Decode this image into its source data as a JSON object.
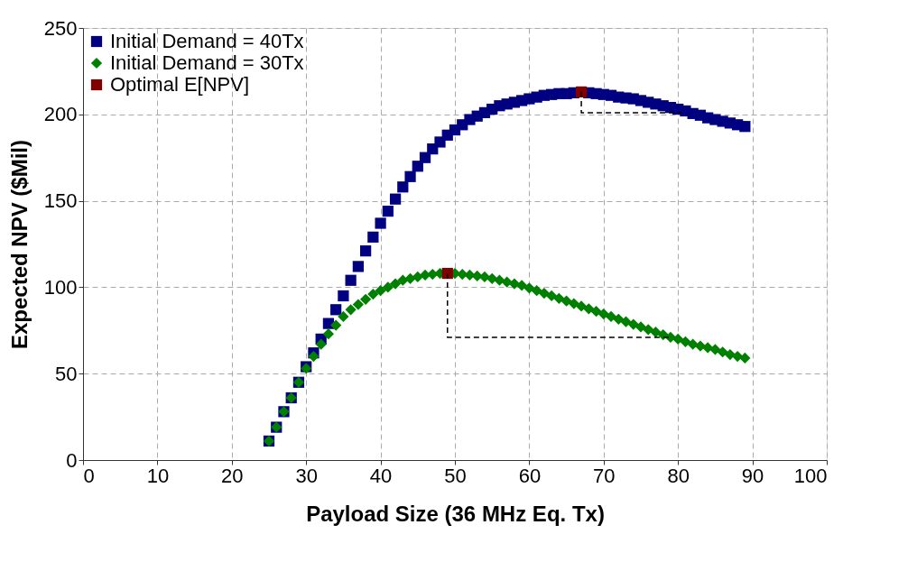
{
  "chart_data": {
    "type": "scatter",
    "xlabel": "Payload Size (36 MHz Eq. Tx)",
    "ylabel": "Expected NPV ($Mil)",
    "xlim": [
      0,
      100
    ],
    "xticks": [
      0,
      10,
      20,
      30,
      40,
      50,
      60,
      70,
      80,
      90,
      100
    ],
    "ylim": [
      0,
      250
    ],
    "yticks": [
      0,
      50,
      100,
      150,
      200,
      250
    ],
    "grid": true,
    "legend": "top left",
    "series": [
      {
        "name": "Initial Demand = 40Tx",
        "color": "#000080",
        "marker": "square",
        "x": [
          25,
          26,
          27,
          28,
          29,
          30,
          31,
          32,
          33,
          34,
          35,
          36,
          37,
          38,
          39,
          40,
          41,
          42,
          43,
          44,
          45,
          46,
          47,
          48,
          49,
          50,
          51,
          52,
          53,
          54,
          55,
          56,
          57,
          58,
          59,
          60,
          61,
          62,
          63,
          64,
          65,
          66,
          67,
          68,
          69,
          70,
          71,
          72,
          73,
          74,
          75,
          76,
          77,
          78,
          79,
          80,
          81,
          82,
          83,
          84,
          85,
          86,
          87,
          88,
          89
        ],
        "values": [
          11,
          19,
          28,
          36,
          45,
          54,
          62,
          70,
          79,
          87,
          95,
          104,
          112,
          121,
          129,
          137,
          144,
          151,
          158,
          164,
          170,
          175,
          180,
          184,
          188,
          191,
          194,
          197,
          199,
          201,
          203,
          205,
          206,
          207,
          208,
          209,
          210,
          211,
          211.5,
          212,
          212,
          212.5,
          null,
          212.5,
          212,
          211.5,
          211,
          210,
          209.5,
          209,
          208,
          207,
          206,
          205,
          204,
          203,
          202,
          200.5,
          199.5,
          198,
          197,
          196,
          195,
          194,
          193
        ]
      },
      {
        "name": "Initial Demand = 30Tx",
        "color": "#008000",
        "marker": "diamond",
        "x": [
          25,
          26,
          27,
          28,
          29,
          30,
          31,
          32,
          33,
          34,
          35,
          36,
          37,
          38,
          39,
          40,
          41,
          42,
          43,
          44,
          45,
          46,
          47,
          48,
          49,
          50,
          51,
          52,
          53,
          54,
          55,
          56,
          57,
          58,
          59,
          60,
          61,
          62,
          63,
          64,
          65,
          66,
          67,
          68,
          69,
          70,
          71,
          72,
          73,
          74,
          75,
          76,
          77,
          78,
          79,
          80,
          81,
          82,
          83,
          84,
          85,
          86,
          87,
          88,
          89
        ],
        "values": [
          11,
          19,
          28,
          36,
          45,
          53,
          60,
          67,
          73,
          78,
          83,
          87,
          90,
          93,
          96,
          98,
          100,
          102,
          104,
          105,
          106,
          107,
          107.5,
          108,
          null,
          108,
          107.5,
          107,
          106.5,
          106,
          105,
          104,
          103,
          102,
          101,
          99.5,
          98,
          96.5,
          95,
          93.5,
          92,
          90.5,
          89,
          87.5,
          86,
          84.5,
          83,
          81.5,
          80,
          78.5,
          77,
          75.5,
          74,
          72.5,
          71,
          70,
          68.5,
          67,
          66,
          65,
          64,
          62.5,
          61,
          60,
          59
        ]
      },
      {
        "name": "Optimal E[NPV]",
        "color": "#800000",
        "marker": "square",
        "x": [
          67,
          49
        ],
        "values": [
          213,
          108
        ]
      },
      {
        "type": "line",
        "color": "#000000",
        "line_style": "dashed",
        "marker": "none",
        "x": [
          67,
          67,
          80.5
        ],
        "values": [
          213,
          201,
          201
        ]
      },
      {
        "type": "line",
        "color": "#000000",
        "line_style": "dashed",
        "marker": "none",
        "x": [
          49,
          49,
          79
        ],
        "values": [
          108,
          71,
          71
        ]
      }
    ]
  }
}
